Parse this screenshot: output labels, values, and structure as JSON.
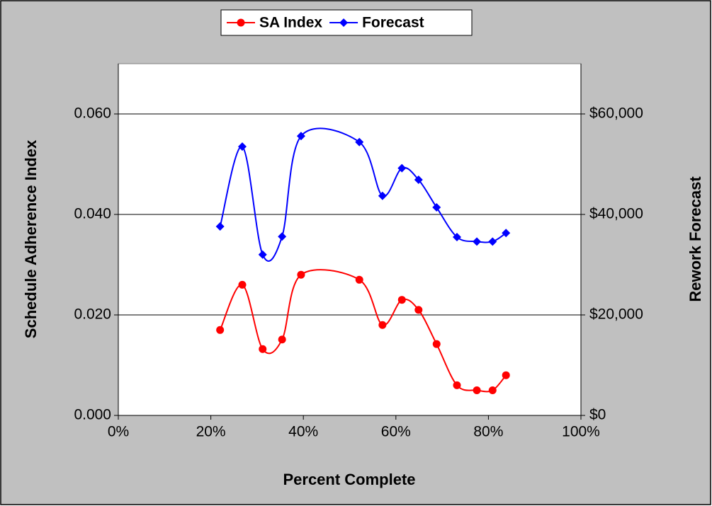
{
  "chart_data": {
    "type": "line",
    "x_label": "Percent Complete",
    "y_label": "Schedule Adherence Index",
    "y2_label": "Rework Forecast",
    "x": [
      22.0,
      26.8,
      31.2,
      35.4,
      39.5,
      52.1,
      57.1,
      61.3,
      64.9,
      68.8,
      73.2,
      77.5,
      80.9,
      83.8
    ],
    "series": [
      {
        "name": "SA Index",
        "color": "#ff0000",
        "marker": "circle",
        "values": [
          0.017,
          0.026,
          0.0132,
          0.0151,
          0.028,
          0.027,
          0.018,
          0.023,
          0.021,
          0.0142,
          0.006,
          0.005,
          0.005,
          0.008
        ]
      },
      {
        "name": "Forecast",
        "color": "#0000ff",
        "marker": "diamond",
        "axis": "y2",
        "values": [
          37600,
          53500,
          32000,
          35600,
          55600,
          54400,
          43700,
          49200,
          46900,
          41400,
          35500,
          34600,
          34600,
          36300
        ]
      }
    ],
    "xlim": [
      0,
      100
    ],
    "xticks": [
      {
        "value": 0,
        "label": "0%"
      },
      {
        "value": 20,
        "label": "20%"
      },
      {
        "value": 40,
        "label": "40%"
      },
      {
        "value": 60,
        "label": "60%"
      },
      {
        "value": 80,
        "label": "80%"
      },
      {
        "value": 100,
        "label": "100%"
      }
    ],
    "ylim": [
      0,
      0.07
    ],
    "yticks": [
      {
        "value": 0,
        "label": "0.000"
      },
      {
        "value": 0.02,
        "label": "0.020"
      },
      {
        "value": 0.04,
        "label": "0.040"
      },
      {
        "value": 0.06,
        "label": "0.060"
      }
    ],
    "y2lim": [
      0,
      70000
    ],
    "y2ticks": [
      {
        "value": 0,
        "label": "$0"
      },
      {
        "value": 20000,
        "label": "$20,000"
      },
      {
        "value": 40000,
        "label": "$40,000"
      },
      {
        "value": 60000,
        "label": "$60,000"
      }
    ],
    "grid": true,
    "smooth": true,
    "legend": "top"
  }
}
